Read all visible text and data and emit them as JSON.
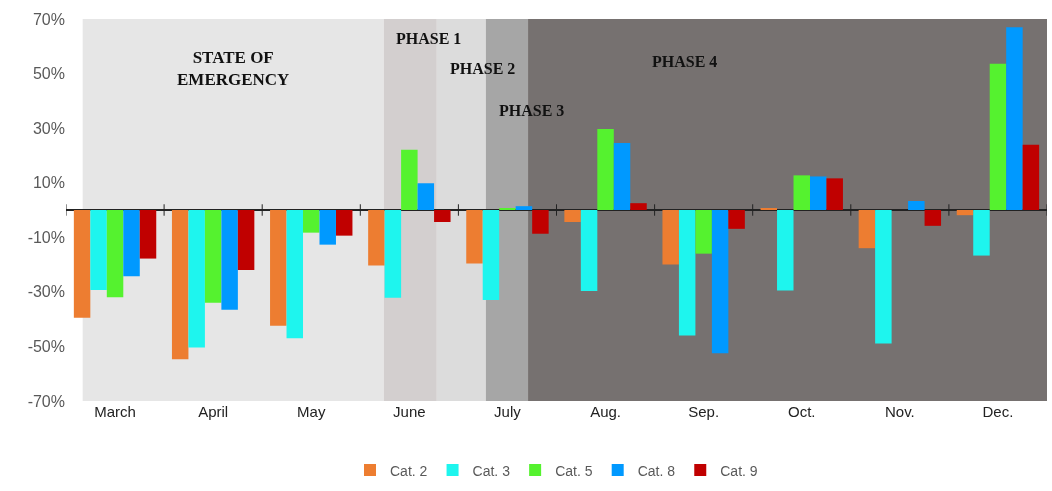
{
  "chart_data": {
    "type": "bar",
    "categories": [
      "March",
      "April",
      "May",
      "June",
      "July",
      "Aug.",
      "Sep.",
      "Oct.",
      "Nov.",
      "Dec."
    ],
    "series": [
      {
        "name": "Cat. 2",
        "color": "#ed7d31",
        "values": [
          -39.5,
          -54.7,
          -42.4,
          -20.3,
          -19.6,
          -4.4,
          -20,
          0.5,
          -14,
          -1.9
        ]
      },
      {
        "name": "Cat. 3",
        "color": "#1ef5ee",
        "values": [
          -29.3,
          -50.4,
          -47,
          -32.2,
          -33,
          -29.7,
          -46,
          -29.5,
          -48.9,
          -16.7
        ]
      },
      {
        "name": "Cat. 5",
        "color": "#55f22f",
        "values": [
          -32,
          -34,
          -8.3,
          22.1,
          0.5,
          29.7,
          -16,
          12.7,
          null,
          53.6
        ]
      },
      {
        "name": "Cat. 8",
        "color": "#0099ff",
        "values": [
          -24.3,
          -36.6,
          -12.7,
          9.8,
          1.4,
          24.6,
          -52.5,
          12.3,
          3.3,
          67
        ]
      },
      {
        "name": "Cat. 9",
        "color": "#c00000",
        "values": [
          -17.8,
          -22,
          -9.4,
          -4.4,
          -8.7,
          2.5,
          -6.9,
          11.6,
          -5.8,
          23.9
        ]
      }
    ],
    "ylim": [
      -70,
      70
    ],
    "yticks": [
      {
        "value": -70,
        "label": "-70%"
      },
      {
        "value": -50,
        "label": "-50%"
      },
      {
        "value": -30,
        "label": "-30%"
      },
      {
        "value": -10,
        "label": "-10%"
      },
      {
        "value": 10,
        "label": "10%"
      },
      {
        "value": 30,
        "label": "30%"
      },
      {
        "value": 50,
        "label": "50%"
      },
      {
        "value": 70,
        "label": "70%"
      }
    ],
    "annotations": [
      "STATE OF EMERGENCY",
      "PHASE 1",
      "PHASE 2",
      "PHASE 3",
      "PHASE 4"
    ],
    "legend": "bottom"
  }
}
